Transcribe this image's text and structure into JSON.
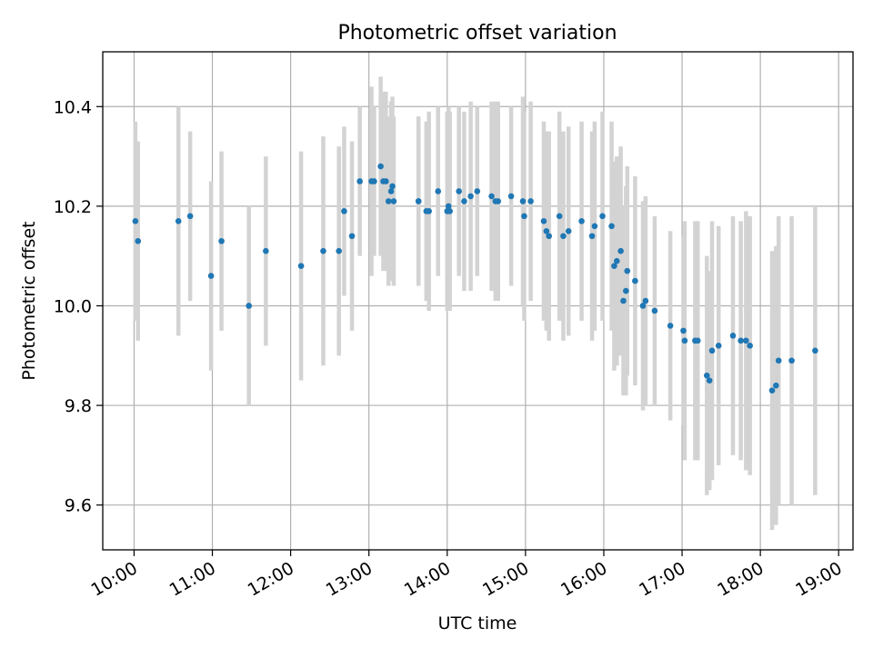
{
  "chart_data": {
    "type": "scatter",
    "title": "Photometric offset variation",
    "xlabel": "UTC time",
    "ylabel": "Photometric offset",
    "x_ticks": [
      "10:00",
      "11:00",
      "12:00",
      "13:00",
      "14:00",
      "15:00",
      "16:00",
      "17:00",
      "18:00",
      "19:00"
    ],
    "y_ticks": [
      "9.6",
      "9.8",
      "10.0",
      "10.2",
      "10.4"
    ],
    "xlim": [
      "09:36",
      "19:11"
    ],
    "ylim": [
      9.51,
      10.51
    ],
    "grid": true,
    "colors": {
      "point": "#1f77b4",
      "errorbar": "#d3d3d3",
      "grid": "#b0b0b0"
    },
    "series": [
      {
        "x": [
          "10:01",
          "10:03",
          "10:34",
          "10:43",
          "10:59",
          "11:07",
          "11:28",
          "11:41",
          "12:08",
          "12:25",
          "12:37",
          "12:41",
          "12:47",
          "12:53",
          "13:02",
          "13:04",
          "13:09",
          "13:11",
          "13:13",
          "13:15",
          "13:17",
          "13:18",
          "13:19",
          "13:38",
          "13:38",
          "13:44",
          "13:46",
          "13:53",
          "14:00",
          "14:01",
          "14:02",
          "14:09",
          "14:13",
          "14:18",
          "14:23",
          "14:34",
          "14:37",
          "14:39",
          "14:49",
          "14:58",
          "14:59",
          "15:04",
          "15:14",
          "15:16",
          "15:18",
          "15:26",
          "15:29",
          "15:33",
          "15:43",
          "15:51",
          "15:53",
          "15:59",
          "16:06",
          "16:08",
          "16:10",
          "16:13",
          "16:15",
          "16:17",
          "16:18",
          "16:24",
          "16:30",
          "16:32",
          "16:39",
          "16:51",
          "17:01",
          "17:02",
          "17:10",
          "17:12",
          "17:19",
          "17:21",
          "17:23",
          "17:28",
          "17:39",
          "17:45",
          "17:49",
          "17:52",
          "18:09",
          "18:12",
          "18:14",
          "18:24",
          "18:42"
        ],
        "y": [
          10.17,
          10.13,
          10.17,
          10.18,
          10.06,
          10.13,
          10.0,
          10.11,
          10.08,
          10.11,
          10.11,
          10.19,
          10.14,
          10.25,
          10.25,
          10.25,
          10.28,
          10.25,
          10.25,
          10.21,
          10.23,
          10.24,
          10.21,
          10.21,
          10.21,
          10.19,
          10.19,
          10.23,
          10.19,
          10.2,
          10.19,
          10.23,
          10.21,
          10.22,
          10.23,
          10.22,
          10.21,
          10.21,
          10.22,
          10.21,
          10.18,
          10.21,
          10.17,
          10.15,
          10.14,
          10.18,
          10.14,
          10.15,
          10.17,
          10.14,
          10.16,
          10.18,
          10.16,
          10.08,
          10.09,
          10.11,
          10.01,
          10.03,
          10.07,
          10.05,
          10.0,
          10.01,
          9.99,
          9.96,
          9.95,
          9.93,
          9.93,
          9.93,
          9.86,
          9.85,
          9.91,
          9.92,
          9.94,
          9.93,
          9.93,
          9.92,
          9.83,
          9.84,
          9.89,
          9.89,
          9.91
        ],
        "yerr": [
          0.2,
          0.2,
          0.23,
          0.17,
          0.19,
          0.18,
          0.2,
          0.19,
          0.23,
          0.23,
          0.21,
          0.17,
          0.19,
          0.15,
          0.19,
          0.15,
          0.18,
          0.18,
          0.18,
          0.17,
          0.18,
          0.18,
          0.17,
          0.17,
          0.17,
          0.18,
          0.2,
          0.17,
          0.2,
          0.2,
          0.2,
          0.17,
          0.18,
          0.19,
          0.17,
          0.19,
          0.2,
          0.2,
          0.18,
          0.21,
          0.21,
          0.2,
          0.2,
          0.2,
          0.21,
          0.21,
          0.21,
          0.21,
          0.2,
          0.21,
          0.21,
          0.21,
          0.21,
          0.21,
          0.21,
          0.21,
          0.19,
          0.21,
          0.21,
          0.21,
          0.21,
          0.21,
          0.19,
          0.19,
          0.19,
          0.24,
          0.24,
          0.24,
          0.24,
          0.22,
          0.26,
          0.24,
          0.24,
          0.24,
          0.26,
          0.26,
          0.28,
          0.28,
          0.29,
          0.29,
          0.29
        ]
      }
    ]
  }
}
